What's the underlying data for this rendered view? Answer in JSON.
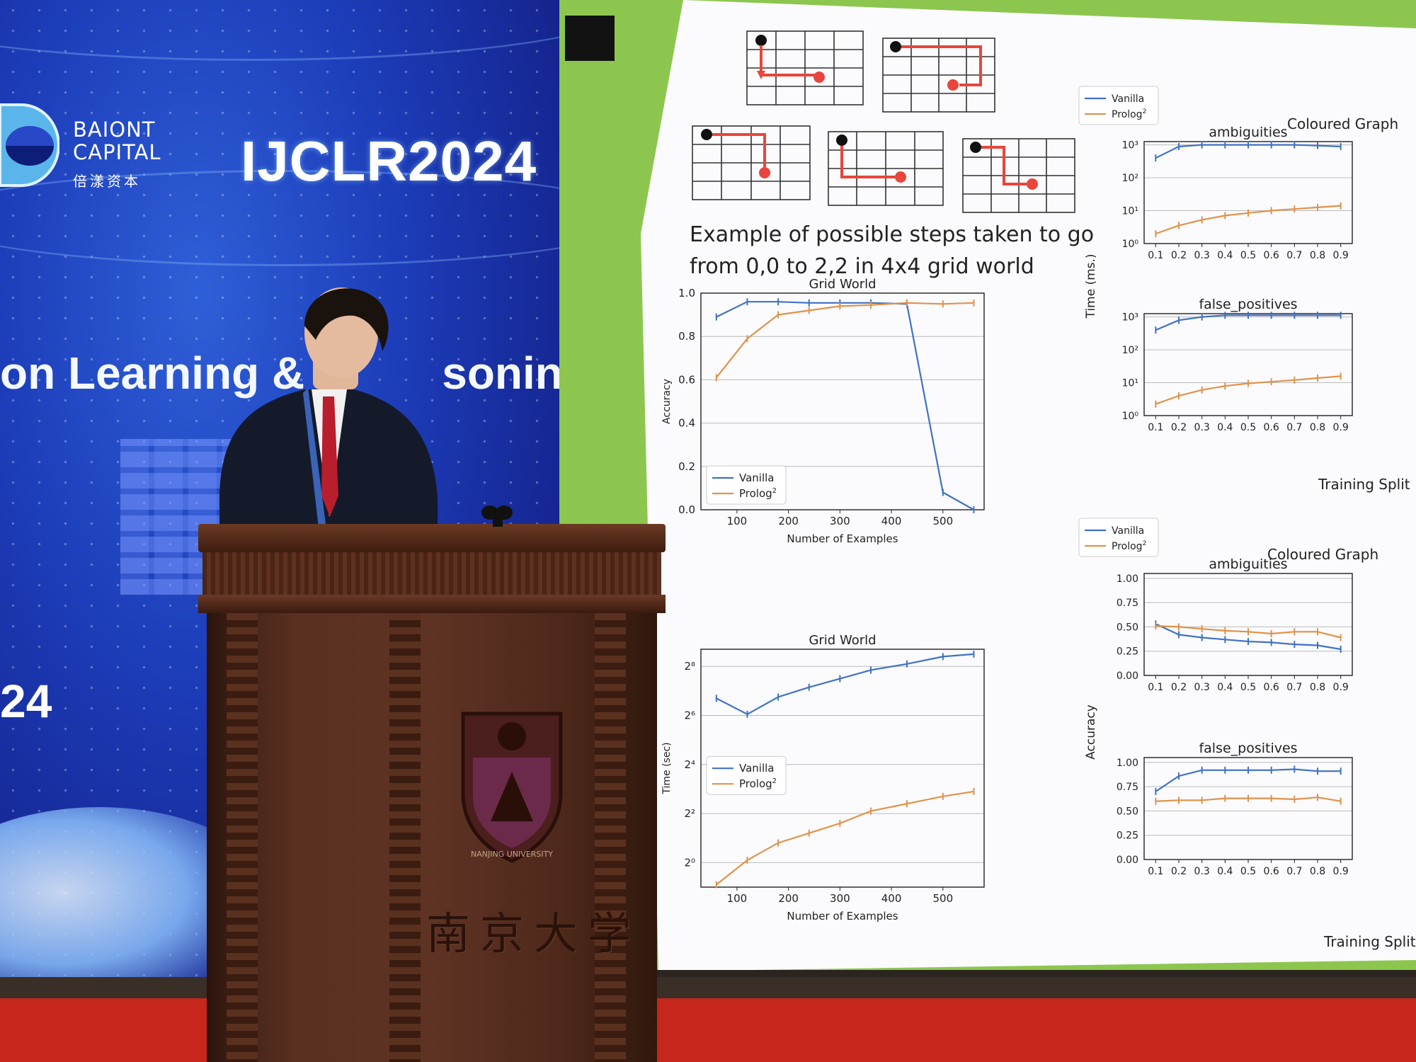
{
  "banner": {
    "brand_line1": "BAIONT",
    "brand_line2": "CAPITAL",
    "brand_cn": "倍漾资本",
    "conference_title": "IJCLR2024",
    "subtitle_fragment": "on Learning & R",
    "subtitle_fragment_end": "soning",
    "year_fragment": "24"
  },
  "slide": {
    "caption_line1": "Example of possible steps taken to go",
    "caption_line2": "from 0,0 to 2,2 in 4x4 grid world",
    "legend_vanilla": "Vanilla",
    "legend_prolog": "Prolog",
    "legend_prolog_sup": "2",
    "training_split_label": "Training Split",
    "coloured_graph_title": "Coloured Graph"
  },
  "podium": {
    "chinese_text": "南京大学",
    "crest_text": "NANJING UNIVERSITY"
  },
  "colors": {
    "vanilla": "#3f72c4",
    "prolog": "#e0924a",
    "arrow": "#e8453c"
  },
  "chart_data": [
    {
      "type": "line",
      "title": "Grid World",
      "xlabel": "Number of Examples",
      "ylabel": "Accuracy",
      "xlim": [
        30,
        580
      ],
      "ylim": [
        0.0,
        1.0
      ],
      "xticks": [
        100,
        200,
        300,
        400,
        500
      ],
      "yticks": [
        0.0,
        0.2,
        0.4,
        0.6,
        0.8,
        1.0
      ],
      "yticklabels": [
        "0.0",
        "0.2",
        "0.4",
        "0.6",
        "0.8",
        "1.0"
      ],
      "legend_position": "lower-left",
      "series": [
        {
          "name": "Vanilla",
          "x": [
            60,
            120,
            180,
            240,
            300,
            360,
            430,
            500,
            560
          ],
          "y": [
            0.89,
            0.96,
            0.96,
            0.955,
            0.955,
            0.955,
            0.95,
            0.08,
            0.0
          ]
        },
        {
          "name": "Prolog²",
          "x": [
            60,
            120,
            180,
            240,
            300,
            360,
            430,
            500,
            560
          ],
          "y": [
            0.61,
            0.79,
            0.9,
            0.92,
            0.94,
            0.945,
            0.955,
            0.95,
            0.955
          ]
        }
      ]
    },
    {
      "type": "line",
      "title": "Grid World",
      "xlabel": "Number of Examples",
      "ylabel": "Time (sec)",
      "scale_y": "log2",
      "xlim": [
        30,
        580
      ],
      "ylim": [
        -1,
        8.7
      ],
      "xticks": [
        100,
        200,
        300,
        400,
        500
      ],
      "yticks": [
        0,
        2,
        4,
        6,
        8
      ],
      "yticklabels": [
        "2⁰",
        "2²",
        "2⁴",
        "2⁶",
        "2⁸"
      ],
      "legend_position": "center-left",
      "series": [
        {
          "name": "Vanilla",
          "x": [
            60,
            120,
            180,
            240,
            300,
            360,
            430,
            500,
            560
          ],
          "y": [
            6.7,
            6.05,
            6.75,
            7.15,
            7.5,
            7.85,
            8.1,
            8.4,
            8.5
          ]
        },
        {
          "name": "Prolog²",
          "x": [
            60,
            120,
            180,
            240,
            300,
            360,
            430,
            500,
            560
          ],
          "y": [
            -0.9,
            0.1,
            0.8,
            1.2,
            1.6,
            2.1,
            2.4,
            2.7,
            2.9
          ]
        }
      ]
    },
    {
      "type": "line",
      "title": "ambiguities",
      "xlabel": "",
      "ylabel": "Time (ms.)",
      "scale_y": "log10",
      "xlim": [
        0.05,
        0.95
      ],
      "ylim": [
        0,
        3.1
      ],
      "xticks": [
        0.1,
        0.2,
        0.3,
        0.4,
        0.5,
        0.6,
        0.7,
        0.8,
        0.9
      ],
      "yticks": [
        0,
        1,
        2,
        3
      ],
      "yticklabels": [
        "10⁰",
        "10¹",
        "10²",
        "10³"
      ],
      "legend_position": "top-left",
      "series": [
        {
          "name": "Vanilla",
          "x": [
            0.1,
            0.2,
            0.3,
            0.4,
            0.5,
            0.6,
            0.7,
            0.8,
            0.9
          ],
          "y": [
            2.6,
            2.95,
            3.0,
            3.0,
            3.0,
            3.0,
            3.0,
            2.98,
            2.95
          ]
        },
        {
          "name": "Prolog²",
          "x": [
            0.1,
            0.2,
            0.3,
            0.4,
            0.5,
            0.6,
            0.7,
            0.8,
            0.9
          ],
          "y": [
            0.3,
            0.55,
            0.72,
            0.85,
            0.93,
            1.0,
            1.05,
            1.1,
            1.15
          ]
        }
      ]
    },
    {
      "type": "line",
      "title": "false_positives",
      "xlabel": "",
      "ylabel": "Time (ms.)",
      "scale_y": "log10",
      "xlim": [
        0.05,
        0.95
      ],
      "ylim": [
        0,
        3.1
      ],
      "xticks": [
        0.1,
        0.2,
        0.3,
        0.4,
        0.5,
        0.6,
        0.7,
        0.8,
        0.9
      ],
      "yticks": [
        0,
        1,
        2,
        3
      ],
      "yticklabels": [
        "10⁰",
        "10¹",
        "10²",
        "10³"
      ],
      "legend_position": "none",
      "series": [
        {
          "name": "Vanilla",
          "x": [
            0.1,
            0.2,
            0.3,
            0.4,
            0.5,
            0.6,
            0.7,
            0.8,
            0.9
          ],
          "y": [
            2.6,
            2.9,
            3.0,
            3.05,
            3.05,
            3.05,
            3.05,
            3.05,
            3.05
          ]
        },
        {
          "name": "Prolog²",
          "x": [
            0.1,
            0.2,
            0.3,
            0.4,
            0.5,
            0.6,
            0.7,
            0.8,
            0.9
          ],
          "y": [
            0.35,
            0.6,
            0.78,
            0.9,
            0.98,
            1.03,
            1.08,
            1.14,
            1.2
          ]
        }
      ]
    },
    {
      "type": "line",
      "title": "ambiguities",
      "xlabel": "",
      "ylabel": "Accuracy",
      "xlim": [
        0.05,
        0.95
      ],
      "ylim": [
        0.0,
        1.05
      ],
      "xticks": [
        0.1,
        0.2,
        0.3,
        0.4,
        0.5,
        0.6,
        0.7,
        0.8,
        0.9
      ],
      "yticks": [
        0.0,
        0.25,
        0.5,
        0.75,
        1.0
      ],
      "yticklabels": [
        "0.00",
        "0.25",
        "0.50",
        "0.75",
        "1.00"
      ],
      "legend_position": "top-left",
      "series": [
        {
          "name": "Vanilla",
          "x": [
            0.1,
            0.2,
            0.3,
            0.4,
            0.5,
            0.6,
            0.7,
            0.8,
            0.9
          ],
          "y": [
            0.53,
            0.42,
            0.39,
            0.37,
            0.35,
            0.34,
            0.32,
            0.31,
            0.27
          ]
        },
        {
          "name": "Prolog²",
          "x": [
            0.1,
            0.2,
            0.3,
            0.4,
            0.5,
            0.6,
            0.7,
            0.8,
            0.9
          ],
          "y": [
            0.51,
            0.5,
            0.48,
            0.46,
            0.45,
            0.43,
            0.45,
            0.45,
            0.39
          ]
        }
      ]
    },
    {
      "type": "line",
      "title": "false_positives",
      "xlabel": "",
      "ylabel": "Accuracy",
      "xlim": [
        0.05,
        0.95
      ],
      "ylim": [
        0.0,
        1.05
      ],
      "xticks": [
        0.1,
        0.2,
        0.3,
        0.4,
        0.5,
        0.6,
        0.7,
        0.8,
        0.9
      ],
      "yticks": [
        0.0,
        0.25,
        0.5,
        0.75,
        1.0
      ],
      "yticklabels": [
        "0.00",
        "0.25",
        "0.50",
        "0.75",
        "1.00"
      ],
      "legend_position": "none",
      "series": [
        {
          "name": "Vanilla",
          "x": [
            0.1,
            0.2,
            0.3,
            0.4,
            0.5,
            0.6,
            0.7,
            0.8,
            0.9
          ],
          "y": [
            0.7,
            0.86,
            0.92,
            0.92,
            0.92,
            0.92,
            0.93,
            0.91,
            0.91
          ]
        },
        {
          "name": "Prolog²",
          "x": [
            0.1,
            0.2,
            0.3,
            0.4,
            0.5,
            0.6,
            0.7,
            0.8,
            0.9
          ],
          "y": [
            0.6,
            0.61,
            0.61,
            0.63,
            0.63,
            0.63,
            0.62,
            0.64,
            0.6
          ]
        }
      ]
    }
  ]
}
